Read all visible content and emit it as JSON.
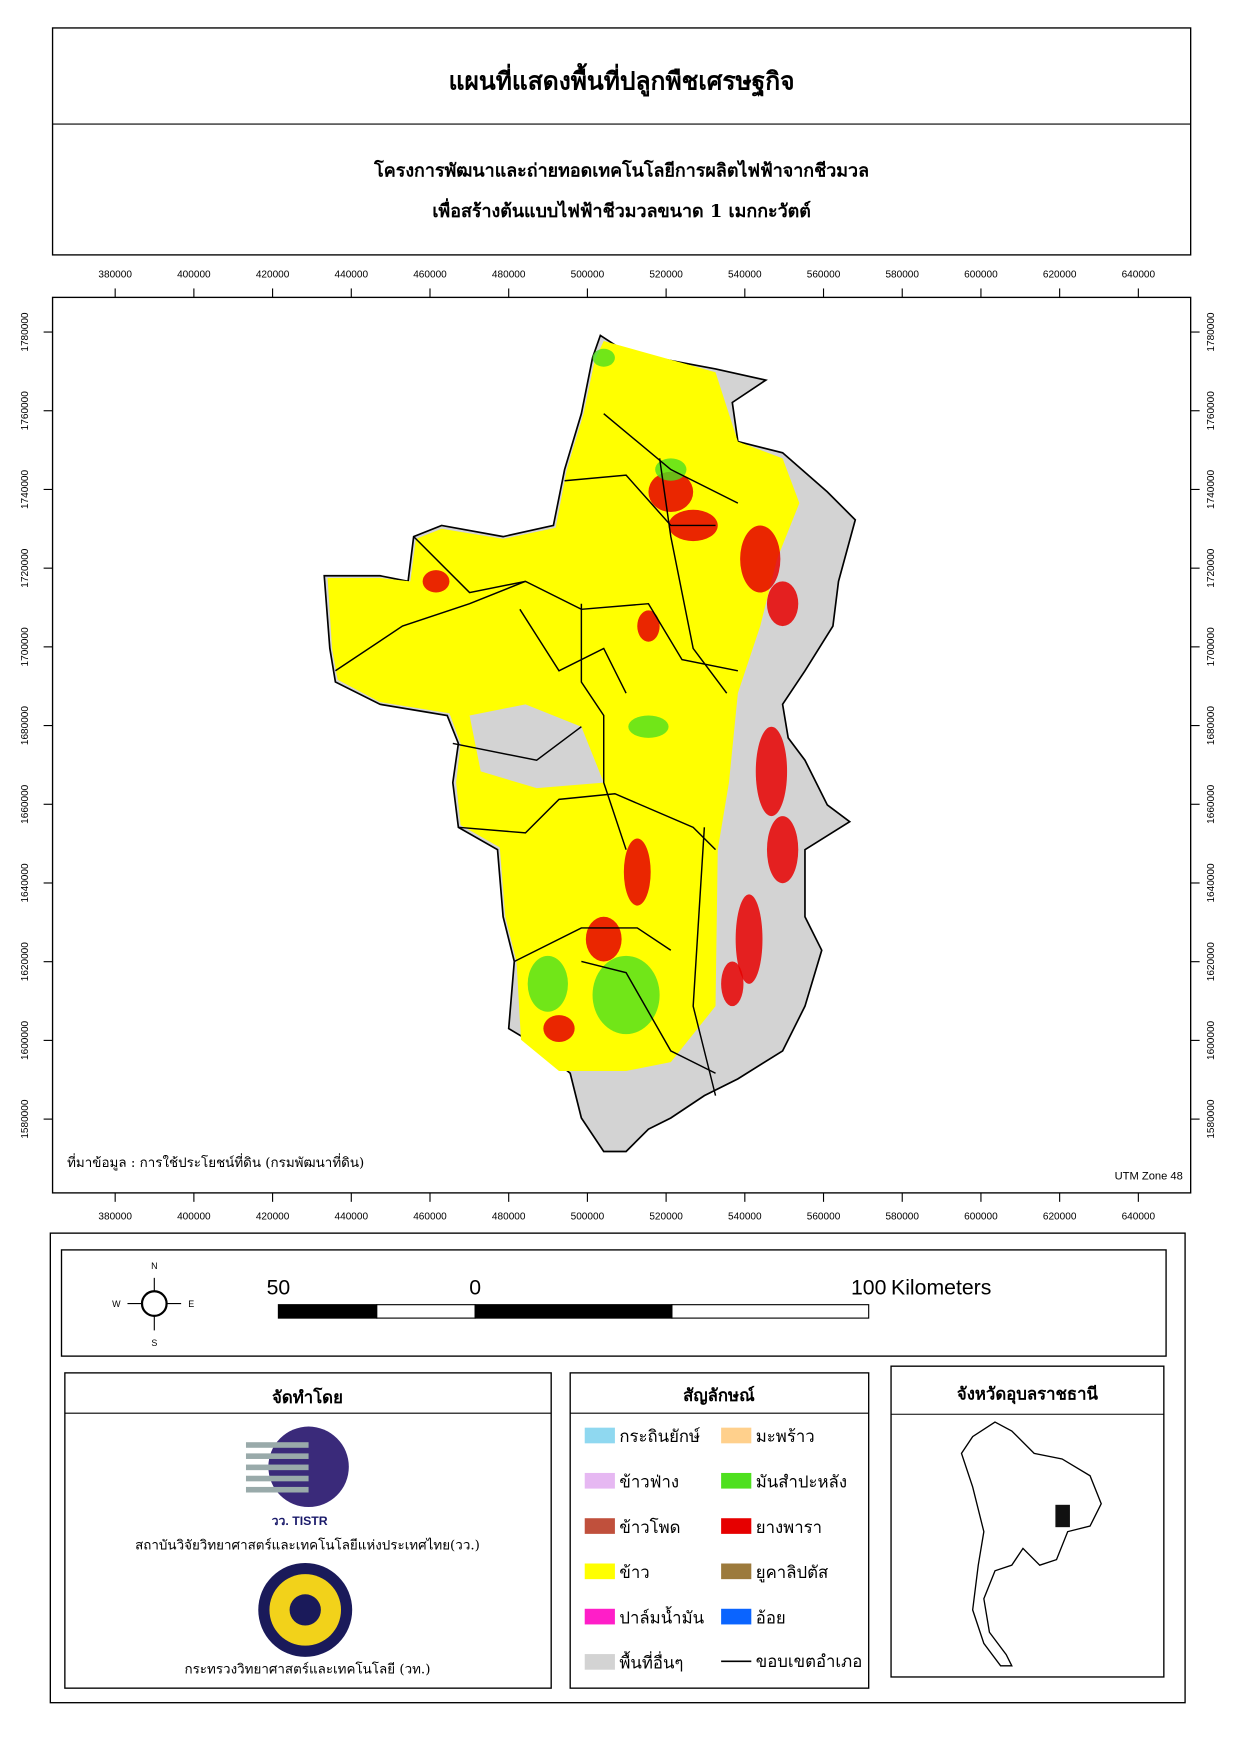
{
  "header": {
    "title": "แผนที่แสดงพื้นที่ปลูกพืชเศรษฐกิจ",
    "subtitle": [
      "โครงการพัฒนาและถ่ายทอดเทคโนโลยีการผลิตไฟฟ้าจากชีวมวล",
      "เพื่อสร้างต้นแบบไฟฟ้าชีวมวลขนาด 1 เมกกะวัตต์"
    ]
  },
  "map": {
    "xticks": [
      380000,
      400000,
      420000,
      440000,
      460000,
      480000,
      500000,
      520000,
      540000,
      560000,
      580000,
      600000,
      620000,
      640000
    ],
    "yticks": [
      1580000,
      1600000,
      1620000,
      1640000,
      1660000,
      1680000,
      1700000,
      1720000,
      1740000,
      1760000,
      1780000
    ],
    "source_note": "ที่มาข้อมูล : การใช้ประโยชน์ที่ดิน  (กรมพัฒนาที่ดิน)",
    "projection": "UTM Zone 48"
  },
  "compass": {
    "n": "N",
    "e": "E",
    "s": "S",
    "w": "W"
  },
  "scale_bar": {
    "ticks": [
      {
        "value": -50,
        "label": "50"
      },
      0,
      100
    ],
    "unit": "Kilometers"
  },
  "producer": {
    "title": "จัดทำโดย",
    "logo_text": "วว. TISTR",
    "orgs": [
      "สถาบันวิจัยวิทยาศาสตร์และเทคโนโลยีแห่งประเทศไทย(วว.)",
      "กระทรวงวิทยาศาสตร์และเทคโนโลยี (วท.)"
    ]
  },
  "legend": {
    "title": "สัญลักษณ์",
    "items": [
      {
        "name": "กระถินยักษ์",
        "color": "#8fd8f0"
      },
      {
        "name": "ข้าวฟ่าง",
        "color": "#e6b8f2"
      },
      {
        "name": "ข้าวโพด",
        "color": "#c0503c"
      },
      {
        "name": "ข้าว",
        "color": "#ffff00"
      },
      {
        "name": "ปาล์มน้ำมัน",
        "color": "#ff1ec8"
      },
      {
        "name": "พื้นที่อื่นๆ",
        "color": "#d3d3d3"
      },
      {
        "name": "มะพร้าว",
        "color": "#ffd08c"
      },
      {
        "name": "มันสำปะหลัง",
        "color": "#4ee01e"
      },
      {
        "name": "ยางพารา",
        "color": "#e60000"
      },
      {
        "name": "ยูคาลิปตัส",
        "color": "#9c7a3c"
      },
      {
        "name": "อ้อย",
        "color": "#0a64ff"
      }
    ],
    "boundary": "ขอบเขตอำเภอ"
  },
  "inset": {
    "title": "จังหวัดอุบลราชธานี"
  }
}
